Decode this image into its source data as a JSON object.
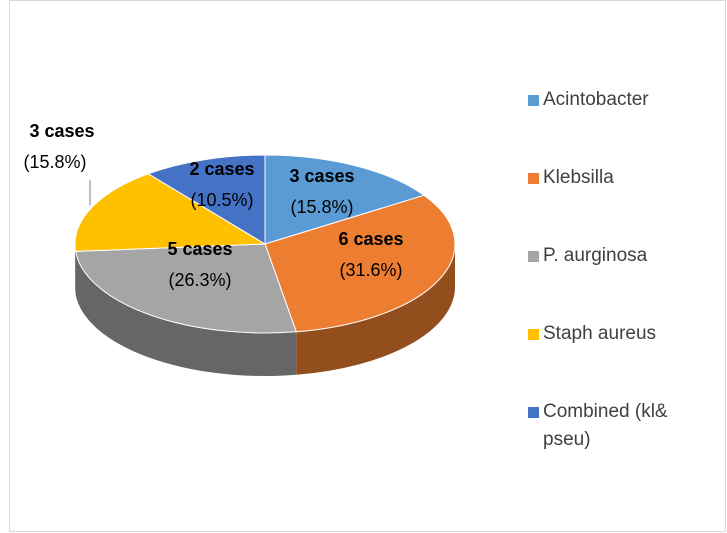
{
  "chart_data": {
    "type": "pie3d",
    "categories": [
      "Acintobacter",
      "Klebsilla",
      "P. aurginosa",
      "Staph aureus",
      "Combined (kl& pseu)"
    ],
    "values": [
      3,
      6,
      5,
      3,
      2
    ],
    "value_labels": [
      "3 cases",
      "6 cases",
      "5 cases",
      "3 cases",
      "2 cases"
    ],
    "percent_labels": [
      "(15.8%)",
      "(31.6%)",
      "(26.3%)",
      "(15.8%)",
      "(10.5%)"
    ],
    "colors": [
      "#5b9bd5",
      "#ed7d31",
      "#a5a5a5",
      "#ffc000",
      "#4472c4"
    ],
    "legend": "right"
  }
}
